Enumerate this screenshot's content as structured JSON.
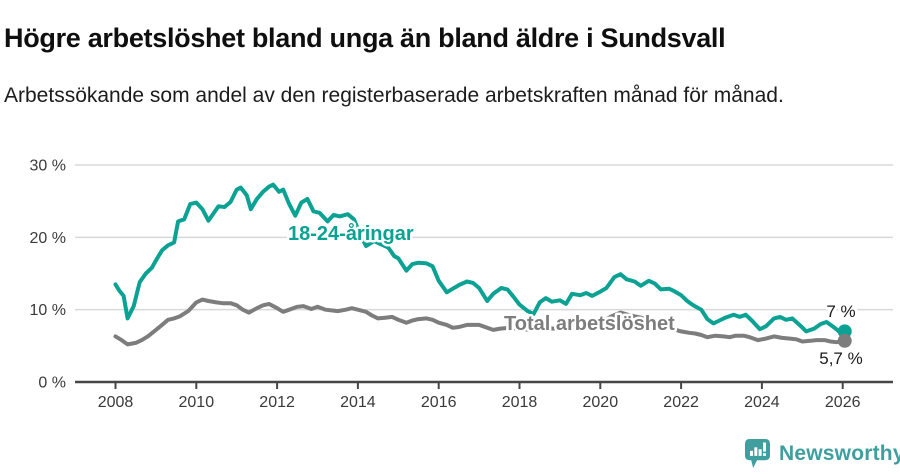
{
  "header": {
    "title": "Högre arbetslöshet bland unga än bland äldre i Sundsvall",
    "subtitle": "Arbetssökande som andel av den registerbaserade arbetskraften månad för månad."
  },
  "footer": {
    "brand": "Newsworthy",
    "brand_color": "#3f9e9e",
    "logo_icon": "speech-bubble-bar-chart-icon"
  },
  "chart_data": {
    "type": "line",
    "title": "Högre arbetslöshet bland unga än bland äldre i Sundsvall",
    "subtitle": "Arbetssökande som andel av den registerbaserade arbetskraften månad för månad.",
    "unit": "%",
    "grid": "horizontal",
    "legend_position": "inline-annotations",
    "x_axis": {
      "tick_years": [
        2008,
        2010,
        2012,
        2014,
        2016,
        2018,
        2020,
        2022,
        2024,
        2026
      ],
      "range": [
        2008,
        2026.1
      ]
    },
    "y_axis": {
      "tick_values": [
        0,
        10,
        20,
        30
      ],
      "tick_suffix": " %",
      "range": [
        0,
        31
      ]
    },
    "series": [
      {
        "name": "18-24-åringar",
        "color": "#0ba294",
        "end_label": "7 %",
        "end_value": 7.0,
        "points": [
          [
            2008.0,
            13.5
          ],
          [
            2008.1,
            12.6
          ],
          [
            2008.2,
            11.9
          ],
          [
            2008.3,
            8.8
          ],
          [
            2008.45,
            10.5
          ],
          [
            2008.6,
            13.8
          ],
          [
            2008.75,
            15.0
          ],
          [
            2008.9,
            15.8
          ],
          [
            2009.0,
            16.8
          ],
          [
            2009.15,
            18.2
          ],
          [
            2009.3,
            18.9
          ],
          [
            2009.45,
            19.3
          ],
          [
            2009.55,
            22.2
          ],
          [
            2009.7,
            22.5
          ],
          [
            2009.85,
            24.6
          ],
          [
            2010.0,
            24.8
          ],
          [
            2010.15,
            23.9
          ],
          [
            2010.3,
            22.3
          ],
          [
            2010.45,
            23.5
          ],
          [
            2010.55,
            24.3
          ],
          [
            2010.7,
            24.2
          ],
          [
            2010.85,
            24.9
          ],
          [
            2011.0,
            26.6
          ],
          [
            2011.1,
            26.9
          ],
          [
            2011.25,
            25.8
          ],
          [
            2011.35,
            23.9
          ],
          [
            2011.5,
            25.3
          ],
          [
            2011.65,
            26.3
          ],
          [
            2011.8,
            27.0
          ],
          [
            2011.9,
            27.3
          ],
          [
            2012.05,
            26.3
          ],
          [
            2012.15,
            26.6
          ],
          [
            2012.3,
            24.6
          ],
          [
            2012.45,
            23.0
          ],
          [
            2012.6,
            24.8
          ],
          [
            2012.75,
            25.3
          ],
          [
            2012.9,
            23.6
          ],
          [
            2013.05,
            23.4
          ],
          [
            2013.25,
            22.2
          ],
          [
            2013.4,
            23.1
          ],
          [
            2013.55,
            22.9
          ],
          [
            2013.75,
            23.2
          ],
          [
            2013.9,
            22.5
          ],
          [
            2014.05,
            20.5
          ],
          [
            2014.2,
            18.8
          ],
          [
            2014.4,
            19.5
          ],
          [
            2014.55,
            19.1
          ],
          [
            2014.75,
            18.6
          ],
          [
            2014.9,
            17.4
          ],
          [
            2015.0,
            17.1
          ],
          [
            2015.2,
            15.4
          ],
          [
            2015.35,
            16.3
          ],
          [
            2015.5,
            16.5
          ],
          [
            2015.7,
            16.4
          ],
          [
            2015.85,
            16.0
          ],
          [
            2016.0,
            14.0
          ],
          [
            2016.2,
            12.4
          ],
          [
            2016.35,
            12.9
          ],
          [
            2016.5,
            13.4
          ],
          [
            2016.7,
            13.9
          ],
          [
            2016.85,
            13.7
          ],
          [
            2017.0,
            13.0
          ],
          [
            2017.2,
            11.2
          ],
          [
            2017.35,
            12.2
          ],
          [
            2017.55,
            13.0
          ],
          [
            2017.7,
            12.8
          ],
          [
            2017.85,
            11.8
          ],
          [
            2018.0,
            10.7
          ],
          [
            2018.2,
            9.8
          ],
          [
            2018.35,
            9.4
          ],
          [
            2018.5,
            11.0
          ],
          [
            2018.65,
            11.6
          ],
          [
            2018.8,
            11.1
          ],
          [
            2019.0,
            11.3
          ],
          [
            2019.15,
            10.8
          ],
          [
            2019.3,
            12.2
          ],
          [
            2019.5,
            12.0
          ],
          [
            2019.65,
            12.3
          ],
          [
            2019.8,
            11.9
          ],
          [
            2020.0,
            12.5
          ],
          [
            2020.15,
            13.0
          ],
          [
            2020.35,
            14.5
          ],
          [
            2020.5,
            14.9
          ],
          [
            2020.65,
            14.2
          ],
          [
            2020.85,
            13.9
          ],
          [
            2021.0,
            13.3
          ],
          [
            2021.2,
            14.0
          ],
          [
            2021.35,
            13.6
          ],
          [
            2021.5,
            12.8
          ],
          [
            2021.7,
            12.9
          ],
          [
            2021.85,
            12.5
          ],
          [
            2022.0,
            12.0
          ],
          [
            2022.15,
            11.2
          ],
          [
            2022.3,
            10.6
          ],
          [
            2022.5,
            10.0
          ],
          [
            2022.65,
            8.7
          ],
          [
            2022.8,
            8.1
          ],
          [
            2022.95,
            8.5
          ],
          [
            2023.1,
            8.9
          ],
          [
            2023.3,
            9.3
          ],
          [
            2023.45,
            9.0
          ],
          [
            2023.6,
            9.3
          ],
          [
            2023.75,
            8.5
          ],
          [
            2023.95,
            7.3
          ],
          [
            2024.1,
            7.7
          ],
          [
            2024.3,
            8.8
          ],
          [
            2024.45,
            9.0
          ],
          [
            2024.6,
            8.6
          ],
          [
            2024.75,
            8.8
          ],
          [
            2024.95,
            7.8
          ],
          [
            2025.1,
            7.0
          ],
          [
            2025.3,
            7.4
          ],
          [
            2025.45,
            8.0
          ],
          [
            2025.6,
            8.3
          ],
          [
            2025.8,
            7.5
          ],
          [
            2025.95,
            6.8
          ],
          [
            2026.05,
            7.0
          ]
        ]
      },
      {
        "name": "Total arbetslöshet",
        "color": "#7d7d7d",
        "end_label": "5,7 %",
        "end_value": 5.7,
        "points": [
          [
            2008.0,
            6.3
          ],
          [
            2008.15,
            5.8
          ],
          [
            2008.3,
            5.2
          ],
          [
            2008.5,
            5.4
          ],
          [
            2008.65,
            5.8
          ],
          [
            2008.8,
            6.3
          ],
          [
            2009.0,
            7.2
          ],
          [
            2009.15,
            7.9
          ],
          [
            2009.3,
            8.6
          ],
          [
            2009.45,
            8.8
          ],
          [
            2009.6,
            9.1
          ],
          [
            2009.8,
            9.8
          ],
          [
            2010.0,
            11.0
          ],
          [
            2010.15,
            11.4
          ],
          [
            2010.3,
            11.2
          ],
          [
            2010.5,
            11.0
          ],
          [
            2010.65,
            10.9
          ],
          [
            2010.85,
            10.9
          ],
          [
            2011.0,
            10.6
          ],
          [
            2011.15,
            10.0
          ],
          [
            2011.3,
            9.6
          ],
          [
            2011.5,
            10.2
          ],
          [
            2011.65,
            10.6
          ],
          [
            2011.8,
            10.8
          ],
          [
            2012.0,
            10.2
          ],
          [
            2012.15,
            9.7
          ],
          [
            2012.3,
            10.0
          ],
          [
            2012.5,
            10.4
          ],
          [
            2012.65,
            10.5
          ],
          [
            2012.85,
            10.1
          ],
          [
            2013.0,
            10.4
          ],
          [
            2013.2,
            10.0
          ],
          [
            2013.35,
            9.9
          ],
          [
            2013.5,
            9.8
          ],
          [
            2013.7,
            10.0
          ],
          [
            2013.85,
            10.2
          ],
          [
            2014.0,
            10.0
          ],
          [
            2014.2,
            9.7
          ],
          [
            2014.35,
            9.2
          ],
          [
            2014.5,
            8.8
          ],
          [
            2014.7,
            8.9
          ],
          [
            2014.85,
            9.0
          ],
          [
            2015.0,
            8.6
          ],
          [
            2015.2,
            8.2
          ],
          [
            2015.35,
            8.5
          ],
          [
            2015.5,
            8.7
          ],
          [
            2015.7,
            8.8
          ],
          [
            2015.85,
            8.6
          ],
          [
            2016.0,
            8.2
          ],
          [
            2016.2,
            7.9
          ],
          [
            2016.35,
            7.5
          ],
          [
            2016.5,
            7.6
          ],
          [
            2016.7,
            7.9
          ],
          [
            2016.85,
            7.9
          ],
          [
            2017.0,
            7.9
          ],
          [
            2017.2,
            7.5
          ],
          [
            2017.35,
            7.2
          ],
          [
            2017.55,
            7.4
          ],
          [
            2017.75,
            7.5
          ],
          [
            2017.9,
            7.4
          ],
          [
            2018.1,
            7.3
          ],
          [
            2018.3,
            7.2
          ],
          [
            2018.5,
            7.4
          ],
          [
            2018.75,
            7.4
          ],
          [
            2019.0,
            7.4
          ],
          [
            2019.25,
            7.5
          ],
          [
            2019.5,
            7.8
          ],
          [
            2019.75,
            7.8
          ],
          [
            2020.0,
            8.1
          ],
          [
            2020.25,
            9.0
          ],
          [
            2020.5,
            9.6
          ],
          [
            2020.75,
            9.2
          ],
          [
            2021.0,
            8.9
          ],
          [
            2021.25,
            8.5
          ],
          [
            2021.5,
            8.0
          ],
          [
            2021.75,
            7.4
          ],
          [
            2022.0,
            7.0
          ],
          [
            2022.2,
            6.8
          ],
          [
            2022.35,
            6.7
          ],
          [
            2022.5,
            6.5
          ],
          [
            2022.65,
            6.2
          ],
          [
            2022.85,
            6.4
          ],
          [
            2023.05,
            6.3
          ],
          [
            2023.2,
            6.2
          ],
          [
            2023.35,
            6.4
          ],
          [
            2023.55,
            6.4
          ],
          [
            2023.7,
            6.2
          ],
          [
            2023.9,
            5.8
          ],
          [
            2024.1,
            6.0
          ],
          [
            2024.3,
            6.3
          ],
          [
            2024.5,
            6.1
          ],
          [
            2024.7,
            6.0
          ],
          [
            2024.85,
            5.9
          ],
          [
            2025.0,
            5.6
          ],
          [
            2025.2,
            5.7
          ],
          [
            2025.35,
            5.8
          ],
          [
            2025.55,
            5.8
          ],
          [
            2025.7,
            5.6
          ],
          [
            2025.85,
            5.5
          ],
          [
            2026.05,
            5.7
          ]
        ]
      }
    ]
  }
}
